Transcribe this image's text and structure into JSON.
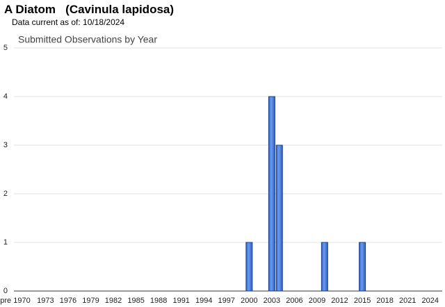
{
  "header": {
    "title": "A Diatom   (Cavinula lapidosa)",
    "date_note": "Data current as of: 10/18/2024"
  },
  "chart_data": {
    "type": "bar",
    "title": "Submitted Observations by Year",
    "categories": [
      "pre 1970",
      null,
      null,
      null,
      "1973",
      null,
      null,
      "1976",
      null,
      null,
      "1979",
      null,
      null,
      "1982",
      null,
      null,
      "1985",
      null,
      null,
      "1988",
      null,
      null,
      "1991",
      null,
      null,
      "1994",
      null,
      null,
      "1997",
      null,
      null,
      "2000",
      null,
      null,
      "2003",
      null,
      null,
      "2006",
      null,
      null,
      "2009",
      null,
      null,
      "2012",
      null,
      null,
      "2015",
      null,
      null,
      "2018",
      null,
      null,
      "2021",
      null,
      null,
      "2024"
    ],
    "values": [
      0,
      0,
      0,
      0,
      0,
      0,
      0,
      0,
      0,
      0,
      0,
      0,
      0,
      0,
      0,
      0,
      0,
      0,
      0,
      0,
      0,
      0,
      0,
      0,
      0,
      0,
      0,
      0,
      0,
      0,
      0,
      1,
      0,
      0,
      4,
      3,
      0,
      0,
      0,
      0,
      0,
      1,
      0,
      0,
      0,
      0,
      1,
      0,
      0,
      0,
      0,
      0,
      0,
      0,
      0,
      0
    ],
    "color": "#4a7fe0",
    "ylim": [
      0,
      5
    ],
    "yticks": [
      0,
      1,
      2,
      3,
      4,
      5
    ],
    "grid": true
  }
}
